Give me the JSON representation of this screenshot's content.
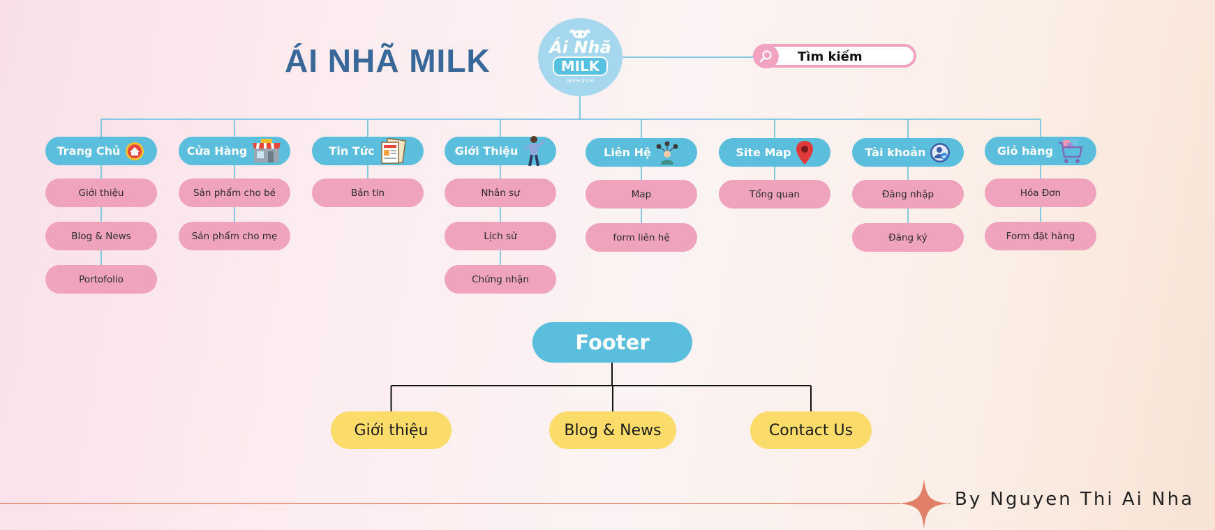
{
  "brand": {
    "title": "ÁI NHÃ MILK"
  },
  "logo": {
    "line1": "Ái Nhã",
    "line2": "MILK",
    "line3": "Since 2024"
  },
  "search": {
    "label": "Tìm kiếm"
  },
  "menu": [
    {
      "label": "Trang Chủ",
      "icon": "home-icon",
      "children": [
        "Giới thiệu",
        "Blog & News",
        "Portofolio"
      ]
    },
    {
      "label": "Cửa Hàng",
      "icon": "shop-icon",
      "children": [
        "Sản phẩm cho bé",
        "Sản phẩm cho mẹ"
      ]
    },
    {
      "label": "Tin Tức",
      "icon": "newspaper-icon",
      "children": [
        "Bản tin"
      ]
    },
    {
      "label": "Giới Thiệu",
      "icon": "presenter-icon",
      "children": [
        "Nhân sự",
        "Lịch sử",
        "Chứng nhận"
      ]
    },
    {
      "label": "Liên Hệ",
      "icon": "network-person-icon",
      "children": [
        "Map",
        "form liên hệ"
      ]
    },
    {
      "label": "Site Map",
      "icon": "map-pin-icon",
      "children": [
        "Tổng quan"
      ]
    },
    {
      "label": "Tài khoản",
      "icon": "user-check-icon",
      "children": [
        "Đăng nhập",
        "Đăng ký"
      ]
    },
    {
      "label": "Giỏ hàng",
      "icon": "cart-icon",
      "children": [
        "Hóa Đơn",
        "Form đặt hàng"
      ]
    }
  ],
  "footer": {
    "label": "Footer",
    "children": [
      "Giới thiệu",
      "Blog & News",
      "Contact Us"
    ]
  },
  "author": "By Nguyen Thi Ai Nha",
  "colors": {
    "main_node": "#5bbedd",
    "sub_node": "#f0a3bd",
    "footer_child": "#fbdc6a",
    "brand": "#38689a",
    "line": "#5bbedd",
    "accent": "#e08068"
  }
}
